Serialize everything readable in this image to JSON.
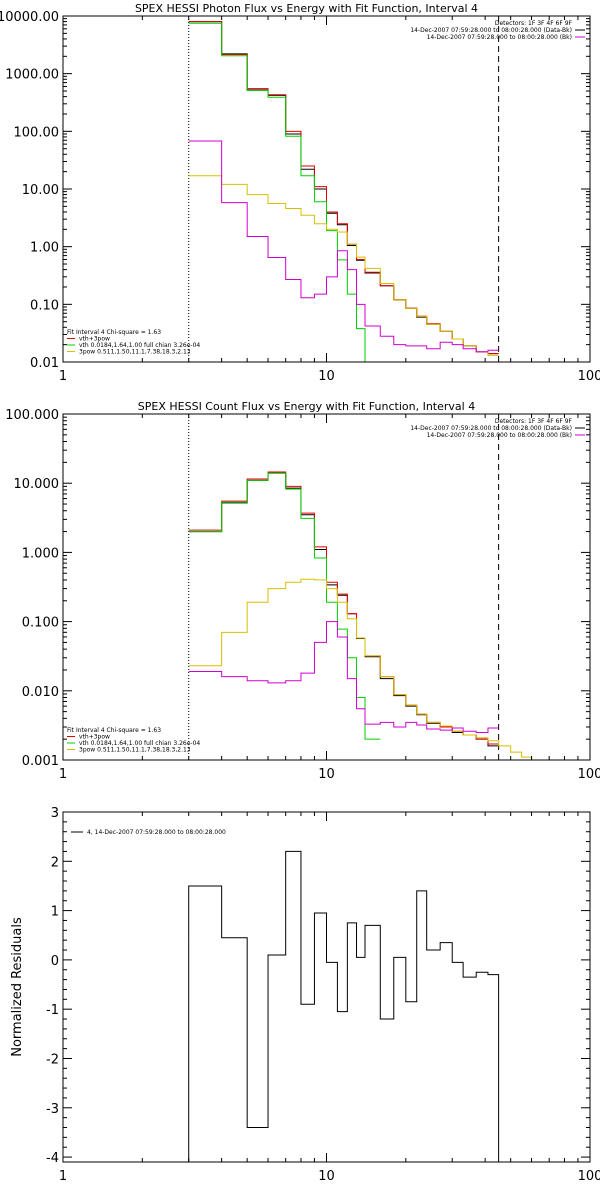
{
  "chart_data": [
    {
      "type": "line",
      "title": "SPEX HESSI Photon Flux vs Energy with Fit Function, Interval 4",
      "xlabel": "",
      "ylabel": "",
      "xscale": "log",
      "yscale": "log",
      "xlim": [
        1,
        100
      ],
      "ylim": [
        0.01,
        10000
      ],
      "x_ticks": [
        {
          "value": 1,
          "label": "1"
        },
        {
          "value": 10,
          "label": "10"
        },
        {
          "value": 100,
          "label": "100"
        }
      ],
      "y_ticks": [
        {
          "value": 0.01,
          "label": "0.01"
        },
        {
          "value": 0.1,
          "label": "0.10"
        },
        {
          "value": 1,
          "label": "1.00"
        },
        {
          "value": 10,
          "label": "10.00"
        },
        {
          "value": 100,
          "label": "100.00"
        },
        {
          "value": 1000,
          "label": "1000.00"
        },
        {
          "value": 10000,
          "label": "10000.00"
        }
      ],
      "vlines": [
        {
          "x": 3,
          "style": "dotted",
          "color": "#000000"
        },
        {
          "x": 45,
          "style": "dashed",
          "color": "#000000"
        }
      ],
      "legend_top_right": [
        {
          "text": "Detectors: 1F 3F 4F 6F 9F",
          "color": ""
        },
        {
          "text": "14-Dec-2007 07:59:28.000 to 08:00:28.000 (Data-Bk)",
          "color": "#000000"
        },
        {
          "text": "14-Dec-2007 07:59:28.000 to 08:00:28.000 (Bk)",
          "color": "#d000d0"
        }
      ],
      "legend_bottom_left": [
        {
          "text": "Fit Interval 4   Chi-square = 1.63",
          "color": ""
        },
        {
          "text": "vth+3pow",
          "color": "#e00000"
        },
        {
          "text": "vth 0.0184,1.64,1.00  full chian 3.26e-04",
          "color": "#00d000"
        },
        {
          "text": "3pow 0.511,1.50,11.1,7.38,18.3,2.13",
          "color": "#d8c000"
        }
      ],
      "series": [
        {
          "name": "Data-Bk",
          "color": "#000000",
          "edges": [
            3,
            4,
            5,
            6,
            7,
            8,
            9,
            10,
            11,
            12,
            13,
            14,
            16,
            18,
            20,
            22,
            24,
            27,
            30,
            33,
            37,
            41,
            45
          ],
          "values": [
            8000,
            2200,
            520,
            420,
            90,
            22,
            10,
            3.8,
            2.4,
            1.05,
            0.58,
            0.35,
            0.21,
            0.12,
            0.085,
            0.06,
            0.045,
            0.034,
            0.025,
            0.019,
            0.015,
            0.014
          ]
        },
        {
          "name": "vth+3pow",
          "color": "#e00000",
          "edges": [
            3,
            4,
            5,
            6,
            7,
            8,
            9,
            10,
            11,
            12,
            13,
            14,
            16,
            18,
            20,
            22,
            24,
            27,
            30,
            33,
            37,
            41,
            45
          ],
          "values": [
            8000,
            2150,
            550,
            430,
            100,
            25,
            11,
            4.0,
            2.5,
            1.1,
            0.6,
            0.36,
            0.21,
            0.12,
            0.086,
            0.062,
            0.046,
            0.034,
            0.025,
            0.019,
            0.015,
            0.014
          ]
        },
        {
          "name": "vth",
          "color": "#00d000",
          "edges": [
            3,
            4,
            5,
            6,
            7,
            8,
            9,
            10,
            11,
            12,
            13,
            14,
            15
          ],
          "values": [
            7500,
            2050,
            510,
            390,
            82,
            17,
            6.0,
            1.9,
            0.59,
            0.15,
            0.038,
            0.009
          ]
        },
        {
          "name": "3pow",
          "color": "#d8c000",
          "edges": [
            3,
            4,
            5,
            6,
            7,
            8,
            9,
            10,
            11,
            12,
            13,
            14,
            16,
            18,
            20,
            22,
            24,
            27,
            30,
            33,
            37,
            41,
            45
          ],
          "values": [
            17,
            12,
            8.0,
            5.6,
            4.6,
            3.5,
            2.5,
            2.0,
            1.8,
            1.1,
            0.66,
            0.42,
            0.23,
            0.12,
            0.085,
            0.062,
            0.045,
            0.034,
            0.025,
            0.019,
            0.015,
            0.013
          ]
        },
        {
          "name": "Bk",
          "color": "#d000d0",
          "edges": [
            3,
            4,
            5,
            6,
            7,
            8,
            9,
            10,
            11,
            12,
            13,
            14,
            16,
            18,
            20,
            22,
            24,
            27,
            30,
            33,
            37,
            41,
            45
          ],
          "values": [
            68,
            5.8,
            1.5,
            0.65,
            0.27,
            0.13,
            0.15,
            0.3,
            0.85,
            0.4,
            0.1,
            0.042,
            0.028,
            0.02,
            0.019,
            0.019,
            0.017,
            0.022,
            0.02,
            0.017,
            0.015,
            0.016
          ]
        }
      ]
    },
    {
      "type": "line",
      "title": "SPEX HESSI Count Flux vs Energy with Fit Function, Interval 4",
      "xlabel": "",
      "ylabel": "",
      "xscale": "log",
      "yscale": "log",
      "xlim": [
        1,
        100
      ],
      "ylim": [
        0.001,
        100
      ],
      "x_ticks": [
        {
          "value": 1,
          "label": "1"
        },
        {
          "value": 10,
          "label": "10"
        },
        {
          "value": 100,
          "label": "100"
        }
      ],
      "y_ticks": [
        {
          "value": 0.001,
          "label": "0.001"
        },
        {
          "value": 0.01,
          "label": "0.010"
        },
        {
          "value": 0.1,
          "label": "0.100"
        },
        {
          "value": 1,
          "label": "1.000"
        },
        {
          "value": 10,
          "label": "10.000"
        },
        {
          "value": 100,
          "label": "100.000"
        }
      ],
      "vlines": [
        {
          "x": 3,
          "style": "dotted",
          "color": "#000000"
        },
        {
          "x": 45,
          "style": "dashed",
          "color": "#000000"
        }
      ],
      "legend_top_right": [
        {
          "text": "Detectors: 1F 3F 4F 6F 9F",
          "color": ""
        },
        {
          "text": "14-Dec-2007 07:59:28.000 to 08:00:28.000 (Data-Bk)",
          "color": "#000000"
        },
        {
          "text": "14-Dec-2007 07:59:28.000 to 08:00:28.000 (Bk)",
          "color": "#d000d0"
        }
      ],
      "legend_bottom_left": [
        {
          "text": "Fit Interval 4   Chi-square = 1.63",
          "color": ""
        },
        {
          "text": "vth+3pow",
          "color": "#e00000"
        },
        {
          "text": "vth 0.0184,1.64,1.00  full chian 3.26e-04",
          "color": "#00d000"
        },
        {
          "text": "3pow 0.511,1.50,11.1,7.38,18.3,2.13",
          "color": "#d8c000"
        }
      ],
      "series": [
        {
          "name": "Data-Bk",
          "color": "#000000",
          "edges": [
            3,
            4,
            5,
            6,
            7,
            8,
            9,
            10,
            11,
            12,
            13,
            14,
            16,
            18,
            20,
            22,
            24,
            27,
            30,
            33,
            37,
            41,
            45
          ],
          "values": [
            2.0,
            5.2,
            11,
            14,
            8.5,
            3.5,
            1.1,
            0.34,
            0.24,
            0.13,
            0.057,
            0.031,
            0.015,
            0.0085,
            0.006,
            0.0045,
            0.0034,
            0.003,
            0.0025,
            0.0023,
            0.002,
            0.0016
          ]
        },
        {
          "name": "vth+3pow",
          "color": "#e00000",
          "edges": [
            3,
            4,
            5,
            6,
            7,
            8,
            9,
            10,
            11,
            12,
            13,
            14,
            16,
            18,
            20,
            22,
            24,
            27,
            30,
            33,
            37,
            41,
            45
          ],
          "values": [
            2.1,
            5.5,
            11.5,
            14.5,
            9.0,
            3.7,
            1.2,
            0.37,
            0.25,
            0.13,
            0.058,
            0.032,
            0.016,
            0.0088,
            0.0062,
            0.0046,
            0.0035,
            0.003,
            0.0026,
            0.0023,
            0.002,
            0.0017
          ]
        },
        {
          "name": "vth",
          "color": "#00d000",
          "edges": [
            3,
            4,
            5,
            6,
            7,
            8,
            9,
            10,
            11,
            12,
            13,
            14,
            16
          ],
          "values": [
            2.0,
            5.3,
            11,
            14,
            8.2,
            3.1,
            0.83,
            0.19,
            0.078,
            0.03,
            0.008,
            0.002
          ]
        },
        {
          "name": "3pow",
          "color": "#d8c000",
          "edges": [
            3,
            4,
            5,
            6,
            7,
            8,
            9,
            10,
            11,
            12,
            13,
            14,
            16,
            18,
            20,
            22,
            24,
            27,
            30,
            33,
            37,
            41,
            45,
            50,
            55,
            60,
            66
          ],
          "values": [
            0.023,
            0.07,
            0.19,
            0.3,
            0.37,
            0.41,
            0.4,
            0.3,
            0.19,
            0.11,
            0.058,
            0.032,
            0.016,
            0.0088,
            0.0062,
            0.0046,
            0.0035,
            0.0031,
            0.0026,
            0.0023,
            0.0021,
            0.0019,
            0.0016,
            0.0013,
            0.0011,
            0.001
          ]
        },
        {
          "name": "Bk",
          "color": "#d000d0",
          "edges": [
            3,
            4,
            5,
            6,
            7,
            8,
            9,
            10,
            11,
            12,
            13,
            14,
            16,
            18,
            20,
            22,
            24,
            27,
            30,
            33,
            37,
            41,
            45
          ],
          "values": [
            0.019,
            0.016,
            0.014,
            0.013,
            0.014,
            0.018,
            0.05,
            0.1,
            0.06,
            0.015,
            0.0055,
            0.0033,
            0.0035,
            0.003,
            0.0035,
            0.0032,
            0.0028,
            0.0027,
            0.0029,
            0.0026,
            0.0025,
            0.0029
          ]
        }
      ]
    },
    {
      "type": "line",
      "title": "",
      "xlabel": "",
      "ylabel": "Normalized Residuals",
      "xscale": "log",
      "yscale": "linear",
      "xlim": [
        1,
        100
      ],
      "ylim": [
        -4.1,
        3
      ],
      "x_ticks": [
        {
          "value": 1,
          "label": "1"
        },
        {
          "value": 10,
          "label": "10"
        },
        {
          "value": 100,
          "label": "100"
        }
      ],
      "y_ticks": [
        {
          "value": -4,
          "label": "-4"
        },
        {
          "value": -3,
          "label": "-3"
        },
        {
          "value": -2,
          "label": "-2"
        },
        {
          "value": -1,
          "label": "-1"
        },
        {
          "value": 0,
          "label": "0"
        },
        {
          "value": 1,
          "label": "1"
        },
        {
          "value": 2,
          "label": "2"
        },
        {
          "value": 3,
          "label": "3"
        }
      ],
      "vlines": [],
      "legend_top_left": [
        {
          "text": "4, 14-Dec-2007 07:59:28.000 to 08:00:28.000",
          "color": "#000000"
        }
      ],
      "series": [
        {
          "name": "4, 14-Dec-2007 07:59:28.000 to 08:00:28.000",
          "color": "#000000",
          "edges": [
            3,
            4,
            5,
            6,
            7,
            8,
            9,
            10,
            11,
            12,
            13,
            14,
            16,
            18,
            20,
            22,
            24,
            27,
            30,
            33,
            37,
            41,
            45
          ],
          "values": [
            1.5,
            0.45,
            -3.4,
            0.1,
            2.2,
            -0.9,
            0.95,
            -0.05,
            -1.05,
            0.75,
            0.05,
            0.7,
            -1.2,
            0.05,
            -0.85,
            1.4,
            0.2,
            0.35,
            -0.05,
            -0.35,
            -0.25,
            -0.3
          ],
          "drop_to_bottom": true
        }
      ]
    }
  ]
}
